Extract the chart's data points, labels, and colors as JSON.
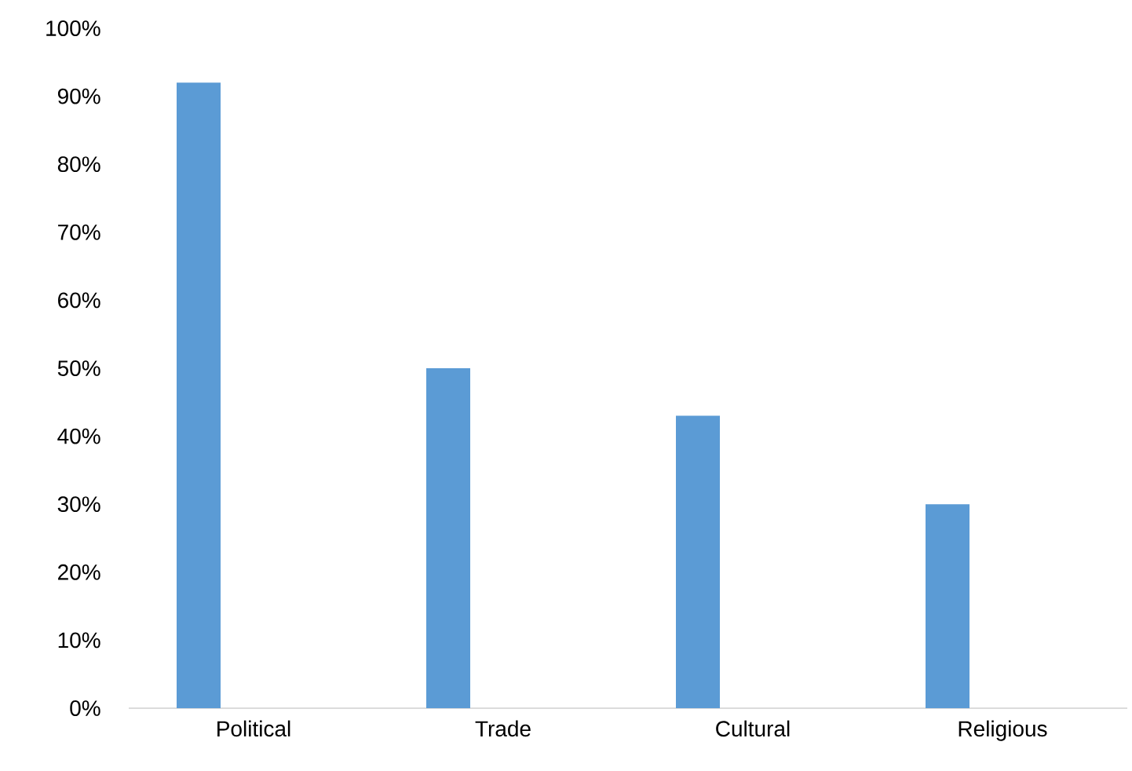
{
  "chart_data": {
    "type": "bar",
    "categories": [
      "Political",
      "Trade",
      "Cultural",
      "Religious"
    ],
    "values": [
      92,
      50,
      43,
      30
    ],
    "color": "#5b9bd5",
    "ylim": [
      0,
      100
    ],
    "yticks": [
      {
        "value": 0,
        "label": "0%"
      },
      {
        "value": 10,
        "label": "10%"
      },
      {
        "value": 20,
        "label": "20%"
      },
      {
        "value": 30,
        "label": "30%"
      },
      {
        "value": 40,
        "label": "40%"
      },
      {
        "value": 50,
        "label": "50%"
      },
      {
        "value": 60,
        "label": "60%"
      },
      {
        "value": 70,
        "label": "70%"
      },
      {
        "value": 80,
        "label": "80%"
      },
      {
        "value": 90,
        "label": "90%"
      },
      {
        "value": 100,
        "label": "100%"
      }
    ]
  }
}
